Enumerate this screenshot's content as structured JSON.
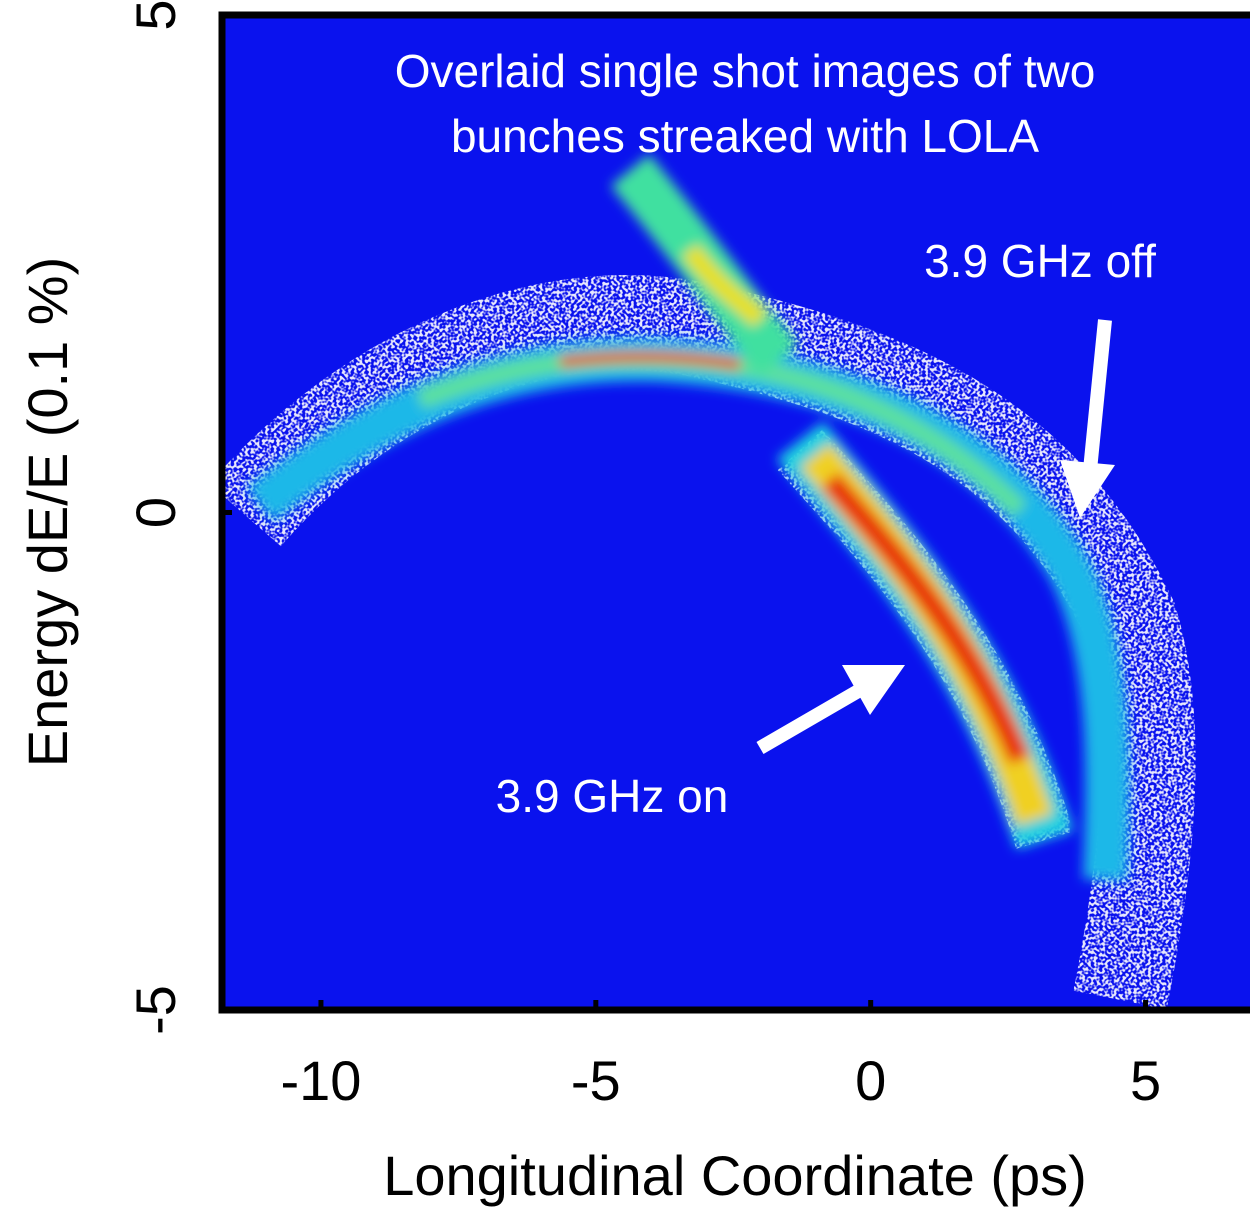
{
  "chart_data": {
    "type": "image",
    "xlabel": "Longitudinal Coordinate (ps)",
    "ylabel": "Energy dE/E (0.1 %)",
    "xlim": [
      -11.8,
      6.9
    ],
    "ylim": [
      -5,
      5
    ],
    "xticks": [
      -10,
      -5,
      0,
      5
    ],
    "yticks": [
      -5,
      0,
      5
    ],
    "background": "#0a12ee",
    "annotations": [
      "Overlaid single shot images of two",
      "bunches streaked with LOLA",
      "3.9 GHz off",
      "3.9 GHz on"
    ]
  }
}
